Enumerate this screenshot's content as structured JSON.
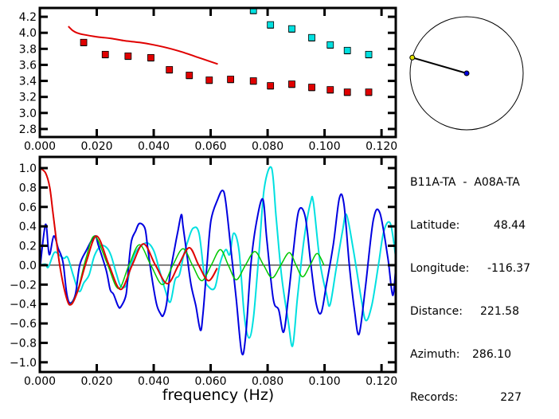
{
  "colors": {
    "red": "#e00000",
    "cyan": "#00e0e0",
    "blue": "#0000e0",
    "green": "#00c800",
    "yellow": "#e0e000",
    "axis": "#000000"
  },
  "station_info": {
    "title": "B11A-TA  -  A08A-TA",
    "rows": [
      {
        "label": "Latitude:",
        "value": "48.44"
      },
      {
        "label": "Longitude:",
        "value": "-116.37"
      },
      {
        "label": "Distance:",
        "value": "221.58"
      },
      {
        "label": "Azimuth:",
        "value": "286.10"
      },
      {
        "label": "Records:",
        "value": "227"
      }
    ]
  },
  "azimuth_deg": 286.1,
  "chart_data": [
    {
      "type": "scatter",
      "title": "",
      "xlabel": "",
      "ylabel": "",
      "xlim": [
        0,
        0.125
      ],
      "ylim": [
        2.7,
        4.31
      ],
      "xticks": [
        "0.000",
        "0.020",
        "0.040",
        "0.060",
        "0.080",
        "0.100",
        "0.120"
      ],
      "yticks": [
        "2.8",
        "3.0",
        "3.2",
        "3.4",
        "3.6",
        "3.8",
        "4.0",
        "4.2"
      ],
      "grid": false,
      "series": [
        {
          "color": "red",
          "kind": "line",
          "points": [
            [
              0.01,
              4.08
            ],
            [
              0.0115,
              4.03
            ],
            [
              0.013,
              4.0
            ],
            [
              0.015,
              3.98
            ],
            [
              0.02,
              3.95
            ],
            [
              0.025,
              3.93
            ],
            [
              0.03,
              3.9
            ],
            [
              0.035,
              3.88
            ],
            [
              0.04,
              3.85
            ],
            [
              0.045,
              3.81
            ],
            [
              0.05,
              3.76
            ],
            [
              0.055,
              3.7
            ],
            [
              0.06,
              3.64
            ],
            [
              0.0625,
              3.61
            ]
          ]
        },
        {
          "color": "red",
          "kind": "markers",
          "points": [
            [
              0.0154,
              3.88
            ],
            [
              0.023,
              3.73
            ],
            [
              0.031,
              3.71
            ],
            [
              0.039,
              3.69
            ],
            [
              0.0455,
              3.54
            ],
            [
              0.0525,
              3.47
            ],
            [
              0.0595,
              3.41
            ],
            [
              0.067,
              3.42
            ],
            [
              0.075,
              3.4
            ],
            [
              0.081,
              3.34
            ],
            [
              0.0885,
              3.36
            ],
            [
              0.0955,
              3.32
            ],
            [
              0.102,
              3.29
            ],
            [
              0.108,
              3.26
            ],
            [
              0.1155,
              3.26
            ]
          ]
        },
        {
          "color": "cyan",
          "kind": "markers",
          "points": [
            [
              0.075,
              4.28
            ],
            [
              0.081,
              4.1
            ],
            [
              0.0885,
              4.05
            ],
            [
              0.0955,
              3.94
            ],
            [
              0.102,
              3.85
            ],
            [
              0.108,
              3.78
            ],
            [
              0.1155,
              3.73
            ]
          ]
        }
      ]
    },
    {
      "type": "line",
      "title": "",
      "xlabel": "frequency (Hz)",
      "ylabel": "",
      "xlim": [
        0,
        0.125
      ],
      "ylim": [
        -1.1,
        1.115
      ],
      "xticks": [
        "0.000",
        "0.020",
        "0.040",
        "0.060",
        "0.080",
        "0.100",
        "0.120"
      ],
      "yticks": [
        "-1.0",
        "-0.8",
        "-0.6",
        "-0.4",
        "-0.2",
        "0.0",
        "0.2",
        "0.4",
        "0.6",
        "0.8",
        "1.0"
      ],
      "zero_line": true,
      "grid": false,
      "series": [
        {
          "color": "cyan",
          "width": 2,
          "points": [
            [
              0,
              0.0
            ],
            [
              0.002,
              0.01
            ],
            [
              0.003,
              -0.02
            ],
            [
              0.0051,
              0.13
            ],
            [
              0.007,
              0.1
            ],
            [
              0.0085,
              0.07
            ],
            [
              0.0098,
              0.08
            ],
            [
              0.0117,
              -0.1
            ],
            [
              0.0138,
              -0.27
            ],
            [
              0.0155,
              -0.18
            ],
            [
              0.0173,
              -0.1
            ],
            [
              0.0192,
              0.1
            ],
            [
              0.0215,
              0.2
            ],
            [
              0.0235,
              0.18
            ],
            [
              0.025,
              0.1
            ],
            [
              0.027,
              -0.1
            ],
            [
              0.0285,
              -0.22
            ],
            [
              0.0305,
              -0.2
            ],
            [
              0.032,
              0.0
            ],
            [
              0.034,
              0.15
            ],
            [
              0.0375,
              0.23
            ],
            [
              0.04,
              0.15
            ],
            [
              0.042,
              -0.05
            ],
            [
              0.044,
              -0.25
            ],
            [
              0.0458,
              -0.38
            ],
            [
              0.0475,
              -0.15
            ],
            [
              0.049,
              -0.1
            ],
            [
              0.0505,
              0.1
            ],
            [
              0.052,
              0.25
            ],
            [
              0.0538,
              0.38
            ],
            [
              0.0559,
              0.33
            ],
            [
              0.0578,
              -0.11
            ],
            [
              0.0592,
              -0.22
            ],
            [
              0.0615,
              -0.23
            ],
            [
              0.0634,
              0.03
            ],
            [
              0.0653,
              0.16
            ],
            [
              0.0667,
              0.11
            ],
            [
              0.0681,
              0.33
            ],
            [
              0.07,
              0.14
            ],
            [
              0.0718,
              -0.52
            ],
            [
              0.0735,
              -0.75
            ],
            [
              0.0751,
              -0.52
            ],
            [
              0.077,
              0.14
            ],
            [
              0.0788,
              0.79
            ],
            [
              0.0814,
              1.0
            ],
            [
              0.083,
              0.49
            ],
            [
              0.0849,
              -0.11
            ],
            [
              0.0872,
              -0.57
            ],
            [
              0.0888,
              -0.83
            ],
            [
              0.0905,
              -0.33
            ],
            [
              0.0928,
              0.27
            ],
            [
              0.0951,
              0.65
            ],
            [
              0.0961,
              0.64
            ],
            [
              0.0984,
              0.03
            ],
            [
              0.1007,
              -0.3
            ],
            [
              0.1019,
              -0.41
            ],
            [
              0.104,
              -0.05
            ],
            [
              0.1063,
              0.35
            ],
            [
              0.1077,
              0.52
            ],
            [
              0.1101,
              0.16
            ],
            [
              0.1129,
              -0.35
            ],
            [
              0.1145,
              -0.57
            ],
            [
              0.1166,
              -0.41
            ],
            [
              0.1189,
              0.0
            ],
            [
              0.1208,
              0.35
            ],
            [
              0.1231,
              0.43
            ],
            [
              0.125,
              0.08
            ]
          ]
        },
        {
          "color": "blue",
          "width": 2,
          "points": [
            [
              0,
              -0.05
            ],
            [
              0.002,
              0.42
            ],
            [
              0.0033,
              0.11
            ],
            [
              0.0049,
              0.3
            ],
            [
              0.0065,
              0.17
            ],
            [
              0.0075,
              0.1
            ],
            [
              0.0083,
              0.0
            ],
            [
              0.0095,
              -0.3
            ],
            [
              0.0107,
              -0.39
            ],
            [
              0.0125,
              -0.3
            ],
            [
              0.014,
              0.0
            ],
            [
              0.0163,
              0.15
            ],
            [
              0.0193,
              0.3
            ],
            [
              0.0206,
              0.2
            ],
            [
              0.0233,
              -0.05
            ],
            [
              0.0247,
              -0.25
            ],
            [
              0.0259,
              -0.3
            ],
            [
              0.0275,
              -0.42
            ],
            [
              0.0284,
              -0.43
            ],
            [
              0.0303,
              -0.3
            ],
            [
              0.0312,
              0.0
            ],
            [
              0.0322,
              0.25
            ],
            [
              0.0336,
              0.35
            ],
            [
              0.035,
              0.43
            ],
            [
              0.0369,
              0.38
            ],
            [
              0.0378,
              0.2
            ],
            [
              0.0392,
              -0.1
            ],
            [
              0.041,
              -0.4
            ],
            [
              0.0424,
              -0.5
            ],
            [
              0.0433,
              -0.52
            ],
            [
              0.0445,
              -0.4
            ],
            [
              0.0457,
              -0.1
            ],
            [
              0.0475,
              0.2
            ],
            [
              0.0485,
              0.35
            ],
            [
              0.0497,
              0.52
            ],
            [
              0.0503,
              0.4
            ],
            [
              0.0517,
              0.1
            ],
            [
              0.0531,
              -0.2
            ],
            [
              0.0548,
              -0.42
            ],
            [
              0.0564,
              -0.67
            ],
            [
              0.0573,
              -0.5
            ],
            [
              0.0587,
              0.0
            ],
            [
              0.0601,
              0.46
            ],
            [
              0.0625,
              0.68
            ],
            [
              0.0642,
              0.77
            ],
            [
              0.0653,
              0.65
            ],
            [
              0.0672,
              0.14
            ],
            [
              0.069,
              -0.35
            ],
            [
              0.0709,
              -0.9
            ],
            [
              0.0723,
              -0.73
            ],
            [
              0.0741,
              0.0
            ],
            [
              0.076,
              0.43
            ],
            [
              0.0783,
              0.68
            ],
            [
              0.0797,
              0.27
            ],
            [
              0.082,
              -0.35
            ],
            [
              0.0839,
              -0.46
            ],
            [
              0.0856,
              -0.69
            ],
            [
              0.0872,
              -0.35
            ],
            [
              0.089,
              0.14
            ],
            [
              0.0909,
              0.56
            ],
            [
              0.0932,
              0.5
            ],
            [
              0.0951,
              0.03
            ],
            [
              0.097,
              -0.39
            ],
            [
              0.0988,
              -0.49
            ],
            [
              0.1007,
              -0.19
            ],
            [
              0.1031,
              0.22
            ],
            [
              0.1052,
              0.69
            ],
            [
              0.1068,
              0.63
            ],
            [
              0.1087,
              0.0
            ],
            [
              0.1105,
              -0.46
            ],
            [
              0.1121,
              -0.71
            ],
            [
              0.1143,
              -0.24
            ],
            [
              0.1171,
              0.46
            ],
            [
              0.1194,
              0.54
            ],
            [
              0.1222,
              0.08
            ],
            [
              0.1239,
              -0.31
            ],
            [
              0.125,
              -0.03
            ]
          ]
        },
        {
          "color": "green",
          "width": 1.5,
          "points": [
            [
              0,
              1.0
            ],
            [
              0.002,
              0.95
            ],
            [
              0.0035,
              0.8
            ],
            [
              0.0047,
              0.52
            ],
            [
              0.007,
              0.0
            ],
            [
              0.0095,
              -0.35
            ],
            [
              0.011,
              -0.4
            ],
            [
              0.0135,
              -0.24
            ],
            [
              0.0163,
              0.08
            ],
            [
              0.0193,
              0.3
            ],
            [
              0.0235,
              0.03
            ],
            [
              0.0276,
              -0.24
            ],
            [
              0.0313,
              0.0
            ],
            [
              0.035,
              0.21
            ],
            [
              0.039,
              0.0
            ],
            [
              0.0431,
              -0.2
            ],
            [
              0.0467,
              0.0
            ],
            [
              0.0503,
              0.17
            ],
            [
              0.0536,
              0.0
            ],
            [
              0.0569,
              -0.16
            ],
            [
              0.0602,
              0.0
            ],
            [
              0.0634,
              0.16
            ],
            [
              0.0662,
              0.0
            ],
            [
              0.069,
              -0.15
            ],
            [
              0.0722,
              0.0
            ],
            [
              0.0755,
              0.14
            ],
            [
              0.0786,
              0.0
            ],
            [
              0.0816,
              -0.13
            ],
            [
              0.0846,
              0.0
            ],
            [
              0.0876,
              0.13
            ],
            [
              0.09,
              0.0
            ],
            [
              0.0923,
              -0.12
            ],
            [
              0.0949,
              0.0
            ],
            [
              0.0974,
              0.12
            ],
            [
              0.0998,
              0.0
            ]
          ]
        },
        {
          "color": "red",
          "width": 2,
          "points": [
            [
              0,
              1.0
            ],
            [
              0.002,
              0.95
            ],
            [
              0.0035,
              0.8
            ],
            [
              0.0047,
              0.52
            ],
            [
              0.007,
              0.0
            ],
            [
              0.0095,
              -0.35
            ],
            [
              0.0112,
              -0.4
            ],
            [
              0.0135,
              -0.25
            ],
            [
              0.0165,
              0.05
            ],
            [
              0.02,
              0.3
            ],
            [
              0.0243,
              0.0
            ],
            [
              0.0284,
              -0.25
            ],
            [
              0.0324,
              0.0
            ],
            [
              0.0364,
              0.22
            ],
            [
              0.0406,
              0.0
            ],
            [
              0.0448,
              -0.19
            ],
            [
              0.0487,
              0.0
            ],
            [
              0.0525,
              0.18
            ],
            [
              0.0558,
              0.0
            ],
            [
              0.0592,
              -0.16
            ],
            [
              0.0623,
              -0.03
            ]
          ]
        }
      ]
    }
  ]
}
